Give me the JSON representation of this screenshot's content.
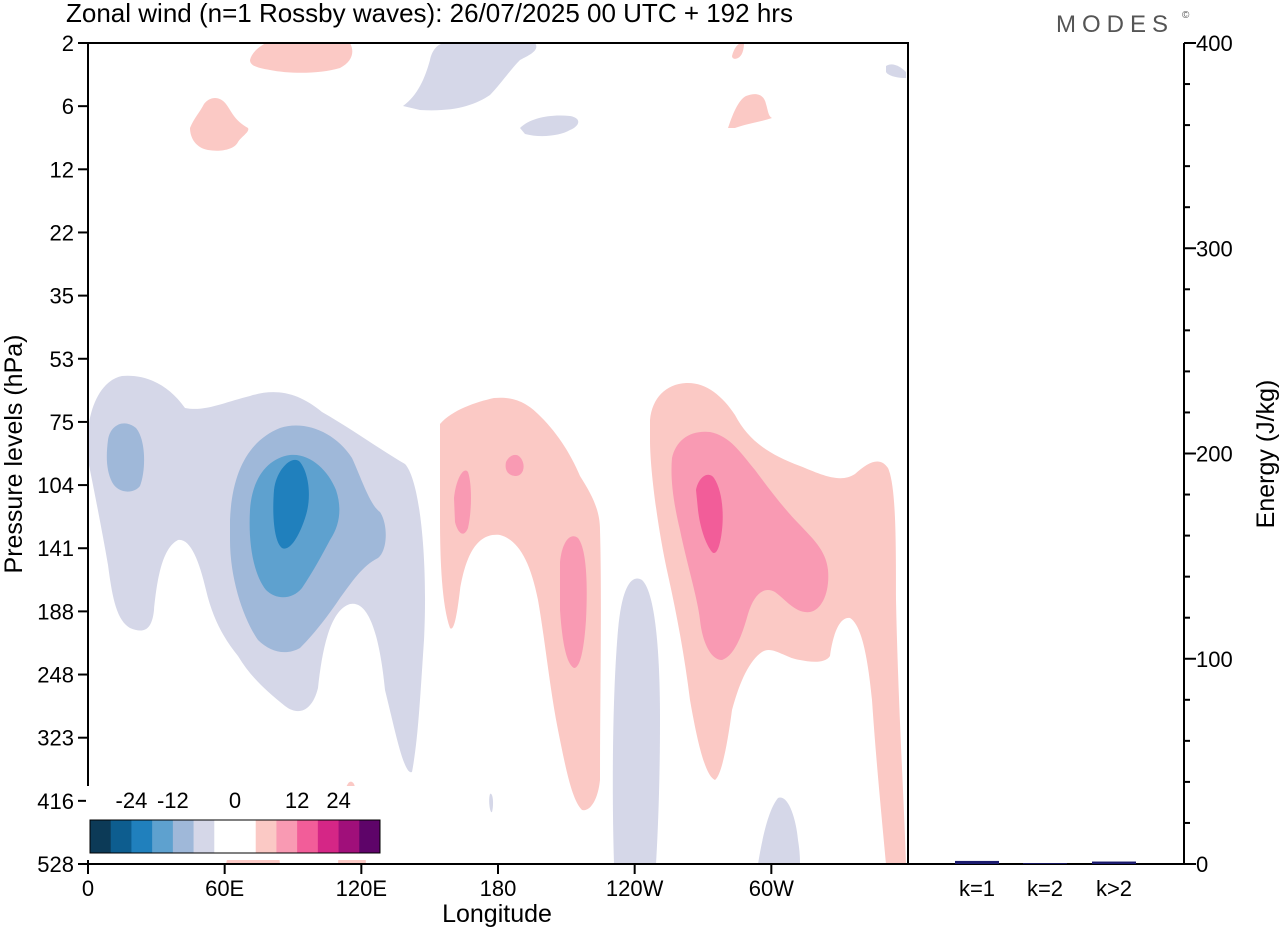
{
  "chart_data": [
    {
      "type": "heatmap",
      "title": "Zonal wind (n=1 Rossby waves):  26/07/2025  00 UTC  + 192 hrs",
      "xlabel": "Longitude",
      "ylabel": "Pressure levels (hPa)",
      "x_ticks": [
        "0",
        "60E",
        "120E",
        "180",
        "120W",
        "60W"
      ],
      "y_ticks": [
        "2",
        "6",
        "12",
        "22",
        "35",
        "53",
        "75",
        "104",
        "141",
        "188",
        "248",
        "323",
        "416",
        "528"
      ],
      "grid": false,
      "colorbar": {
        "placement": "bottom-left",
        "tick_labels": [
          "-24",
          "-12",
          "0",
          "12",
          "24"
        ],
        "levels": [
          -30,
          -27,
          -24,
          -21,
          -18,
          -15,
          -12,
          -9,
          -6,
          -3,
          0,
          3,
          6,
          9,
          12,
          15,
          18,
          21,
          24,
          27,
          30
        ],
        "colors": [
          "#0c3a57",
          "#0d5d8f",
          "#2080bd",
          "#5ea1cf",
          "#9fb8d9",
          "#d5d7e8",
          "#ffffff",
          "#ffffff",
          "#fbc9c5",
          "#f99ab3",
          "#f25d99",
          "#d52686",
          "#a00f7a",
          "#5e0469"
        ]
      },
      "contour_features": [
        {
          "name": "negative-anomaly-40E-100hPa",
          "lon_center": 15,
          "level_center": 90,
          "min_value": -9
        },
        {
          "name": "negative-anomaly-90E-120hPa",
          "lon_center": 90,
          "level_center": 120,
          "min_value": -21
        },
        {
          "name": "positive-anomaly-200E-150hPa",
          "lon_center": 198,
          "level_center": 150,
          "max_value": 9
        },
        {
          "name": "positive-anomaly-265E-120hPa",
          "lon_center": 275,
          "level_center": 120,
          "max_value": 15
        },
        {
          "name": "negative-anomaly-140W-surface",
          "lon_center": 235,
          "level_center": 350,
          "min_value": -3
        }
      ]
    },
    {
      "type": "bar",
      "ylabel": "Energy (J/kg)",
      "categories": [
        "k=1",
        "k=2",
        "k>2"
      ],
      "values": [
        1.5,
        0.4,
        1.2
      ],
      "ylim": [
        0,
        400
      ],
      "y_ticks": [
        "0",
        "100",
        "200",
        "300",
        "400"
      ],
      "bar_color": "#1a1a6e"
    }
  ],
  "logo": {
    "text": "MODES",
    "mark": "©"
  }
}
